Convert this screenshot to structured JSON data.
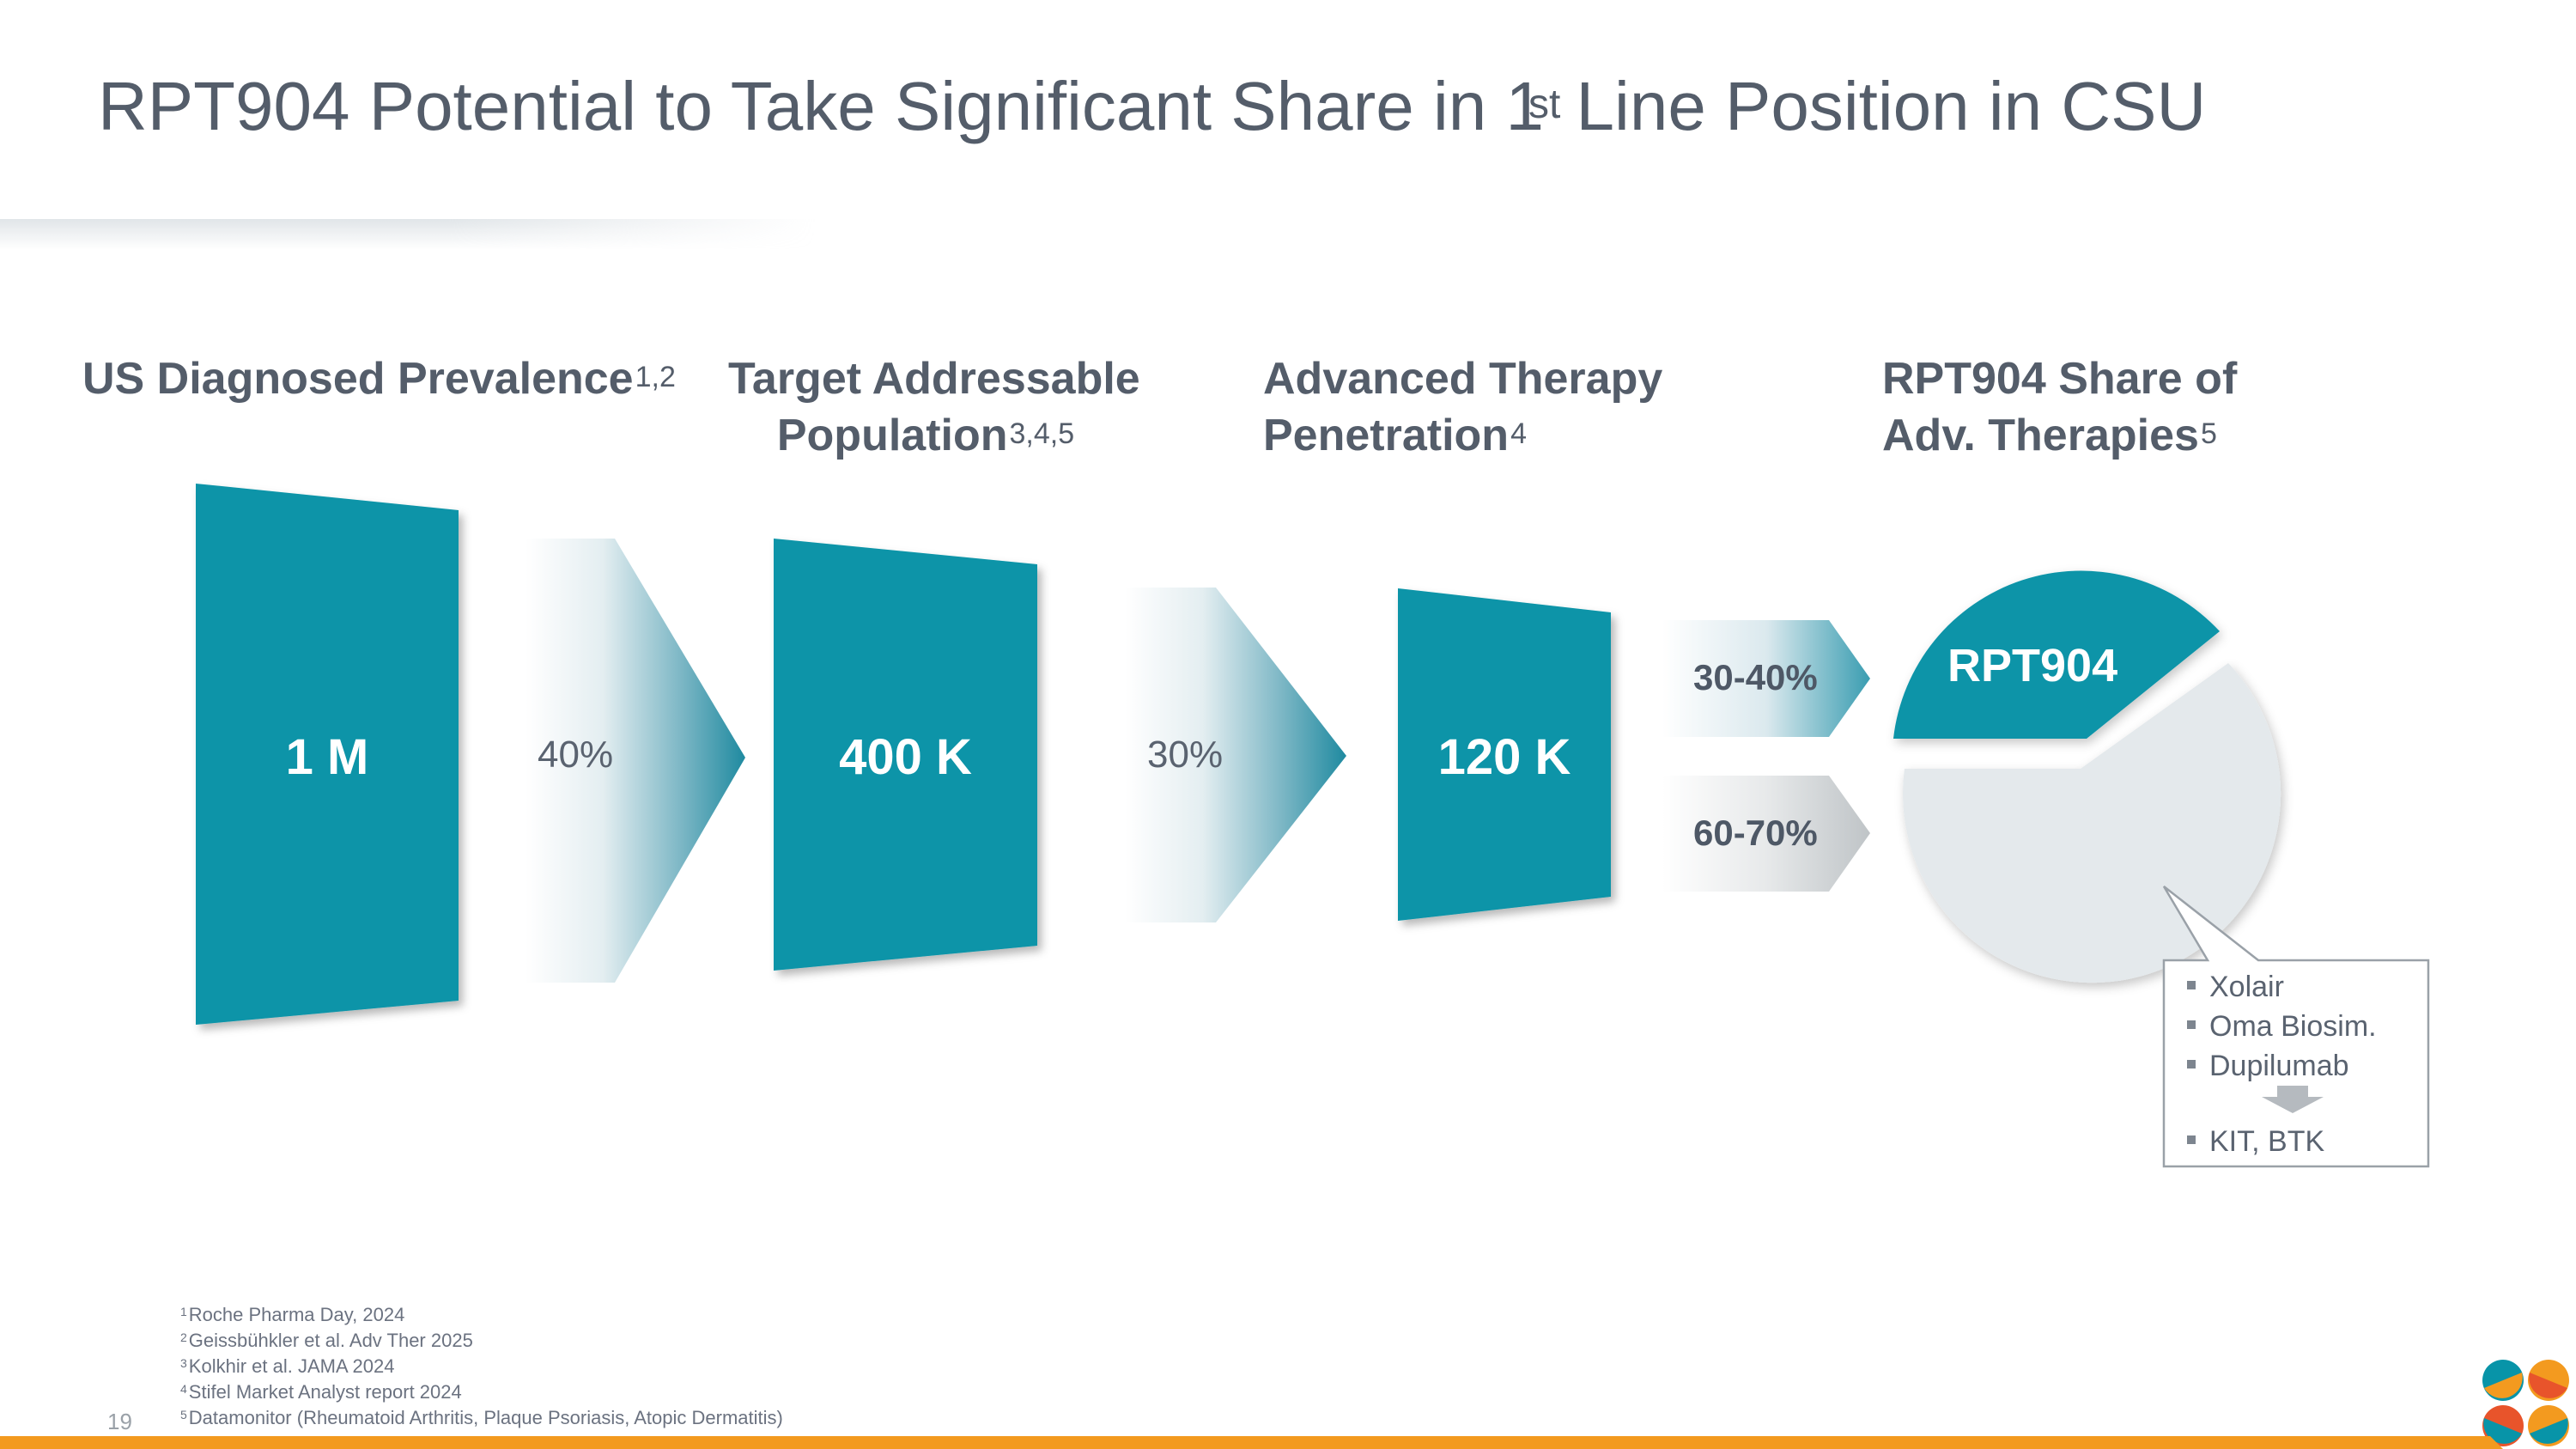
{
  "slide": {
    "title_prefix": "RPT904 Potential to Take Significant Share in 1",
    "title_sup": "st",
    "title_suffix": " Line Position in CSU",
    "page_number": "19"
  },
  "columns": [
    {
      "heading_lines": [
        "US Diagnosed Prevalence"
      ],
      "sup": "1,2"
    },
    {
      "heading_lines": [
        "Target Addressable",
        "Population"
      ],
      "sup": "3,4,5"
    },
    {
      "heading_lines": [
        "Advanced Therapy",
        "Penetration"
      ],
      "sup": "4"
    },
    {
      "heading_lines": [
        "RPT904 Share of",
        "Adv. Therapies"
      ],
      "sup": "5"
    }
  ],
  "funnel": {
    "boxes": [
      "1 M",
      "400 K",
      "120 K"
    ],
    "conversion_rates": [
      "40%",
      "30%"
    ],
    "splits": [
      "30-40%",
      "60-70%"
    ]
  },
  "pie": {
    "highlight_label": "RPT904",
    "callout_items": [
      "Xolair",
      "Oma Biosim.",
      "Dupilumab",
      "KIT, BTK"
    ]
  },
  "footnotes": [
    {
      "num": "1",
      "text": "Roche Pharma Day, 2024"
    },
    {
      "num": "2",
      "text": "Geissbühkler et al. Adv Ther 2025"
    },
    {
      "num": "3",
      "text": "Kolkhir et al. JAMA 2024"
    },
    {
      "num": "4",
      "text": "Stifel Market Analyst report 2024"
    },
    {
      "num": "5",
      "text": "Datamonitor (Rheumatoid Arthritis, Plaque Psoriasis, Atopic Dermatitis)"
    }
  ],
  "colors": {
    "teal": "#0894a8",
    "light_gray": "#e4e9ec",
    "orange": "#f39a1f",
    "text_dark": "#545d6a"
  }
}
